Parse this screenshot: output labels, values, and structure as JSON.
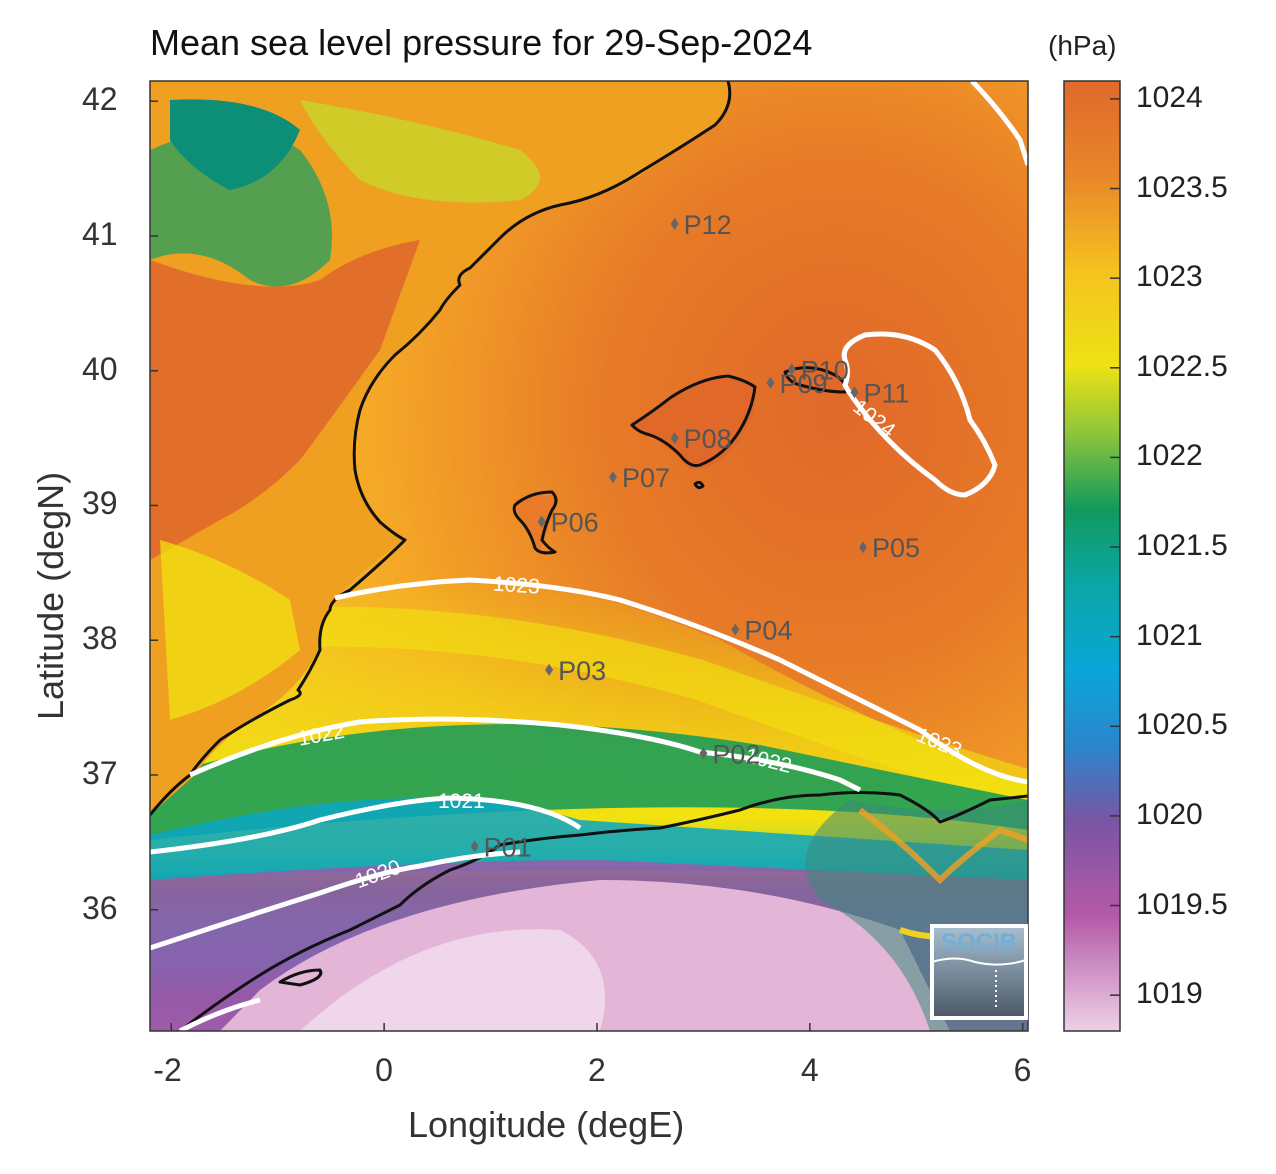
{
  "title": "Mean sea level pressure for 29-Sep-2024",
  "units_label": "(hPa)",
  "x_axis": {
    "label": "Longitude (degE)",
    "ticks": [
      "-2",
      "0",
      "2",
      "4",
      "6"
    ],
    "range": [
      -2.2,
      6.05
    ]
  },
  "y_axis": {
    "label": "Latitude (degN)",
    "ticks": [
      "36",
      "37",
      "38",
      "39",
      "40",
      "41",
      "42"
    ],
    "range": [
      35.1,
      42.15
    ]
  },
  "colorbar": {
    "ticks": [
      "1024",
      "1023.5",
      "1023",
      "1022.5",
      "1022",
      "1021.5",
      "1021",
      "1020.5",
      "1020",
      "1019.5",
      "1019"
    ],
    "range": [
      1018.8,
      1024.1
    ]
  },
  "contours": [
    {
      "label": "1020",
      "level": 1020
    },
    {
      "label": "1021",
      "level": 1021
    },
    {
      "label": "1022",
      "level": 1022
    },
    {
      "label": "1022",
      "level": 1022
    },
    {
      "label": "1023",
      "level": 1023
    },
    {
      "label": "1023",
      "level": 1023
    },
    {
      "label": "1024",
      "level": 1024
    }
  ],
  "stations": [
    {
      "label": "P01",
      "lon": 0.85,
      "lat": 36.47
    },
    {
      "label": "P02",
      "lon": 3.0,
      "lat": 37.16
    },
    {
      "label": "P03",
      "lon": 1.55,
      "lat": 37.78
    },
    {
      "label": "P04",
      "lon": 3.3,
      "lat": 38.08
    },
    {
      "label": "P05",
      "lon": 4.5,
      "lat": 38.69
    },
    {
      "label": "P06",
      "lon": 1.48,
      "lat": 38.88
    },
    {
      "label": "P07",
      "lon": 2.15,
      "lat": 39.21
    },
    {
      "label": "P08",
      "lon": 2.73,
      "lat": 39.5
    },
    {
      "label": "P09",
      "lon": 3.63,
      "lat": 39.91
    },
    {
      "label": "P10",
      "lon": 3.83,
      "lat": 40.01
    },
    {
      "label": "P11",
      "lon": 4.42,
      "lat": 39.84
    },
    {
      "label": "P12",
      "lon": 2.73,
      "lat": 41.09
    }
  ],
  "logo": {
    "text": "SOCIB"
  },
  "colors": {
    "high": "#e0692a",
    "mid_high": "#f5b62a",
    "yellow": "#f2e20f",
    "green": "#129a5c",
    "cyan": "#0aa6c3",
    "purple": "#7a55a3",
    "light_pink": "#e6c3dc",
    "contour": "#ffffff",
    "coast": "#111111",
    "station": "#666666"
  }
}
